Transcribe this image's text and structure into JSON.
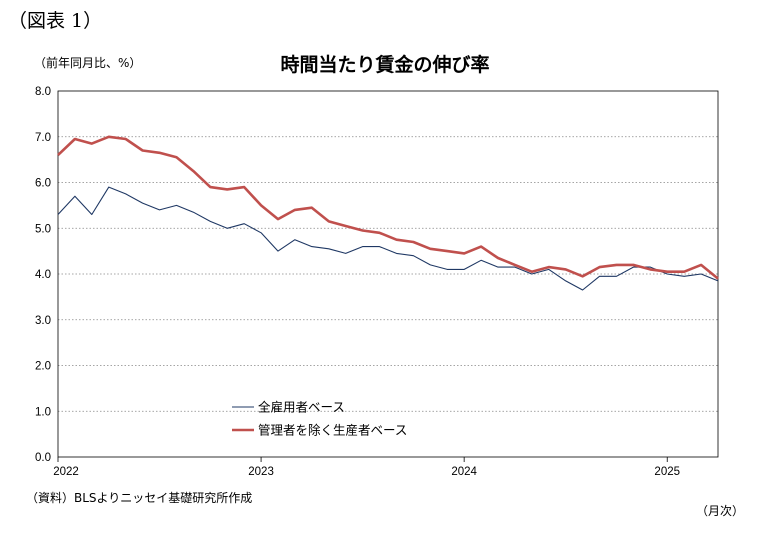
{
  "figure_label": "（図表 1）",
  "unit_label": "（前年同月比、%）",
  "source_note": "（資料）BLSよりニッセイ基礎研究所作成",
  "x_unit_label": "（月次）",
  "chart_data": {
    "type": "line",
    "title": "時間当たり賃金の伸び率",
    "xlabel": "",
    "ylabel": "",
    "ylim": [
      0,
      8
    ],
    "y_ticks": [
      "0.0",
      "1.0",
      "2.0",
      "3.0",
      "4.0",
      "5.0",
      "6.0",
      "7.0",
      "8.0"
    ],
    "x_tick_labels": [
      "2022",
      "2023",
      "2024",
      "2025"
    ],
    "x_tick_months": [
      0,
      12,
      24,
      36
    ],
    "x_month_range": [
      0,
      39
    ],
    "grid": "horizontal-dotted",
    "legend_position": "bottom-center",
    "series": [
      {
        "name": "全雇用者ベース",
        "color": "#1f3864",
        "values": [
          5.3,
          5.7,
          5.3,
          5.9,
          5.75,
          5.55,
          5.4,
          5.5,
          5.35,
          5.15,
          5.0,
          5.1,
          4.9,
          4.5,
          4.75,
          4.6,
          4.55,
          4.45,
          4.6,
          4.6,
          4.45,
          4.4,
          4.2,
          4.1,
          4.1,
          4.3,
          4.15,
          4.15,
          4.0,
          4.1,
          3.85,
          3.65,
          3.95,
          3.95,
          4.15,
          4.15,
          4.0,
          3.95,
          4.0,
          3.85
        ]
      },
      {
        "name": "管理者を除く生産者ベース",
        "color": "#c0504d",
        "values": [
          6.6,
          6.95,
          6.85,
          7.0,
          6.95,
          6.7,
          6.65,
          6.55,
          6.25,
          5.9,
          5.85,
          5.9,
          5.5,
          5.2,
          5.4,
          5.45,
          5.15,
          5.05,
          4.95,
          4.9,
          4.75,
          4.7,
          4.55,
          4.5,
          4.45,
          4.6,
          4.35,
          4.2,
          4.05,
          4.15,
          4.1,
          3.95,
          4.15,
          4.2,
          4.2,
          4.1,
          4.05,
          4.05,
          4.2,
          3.9
        ]
      }
    ]
  }
}
